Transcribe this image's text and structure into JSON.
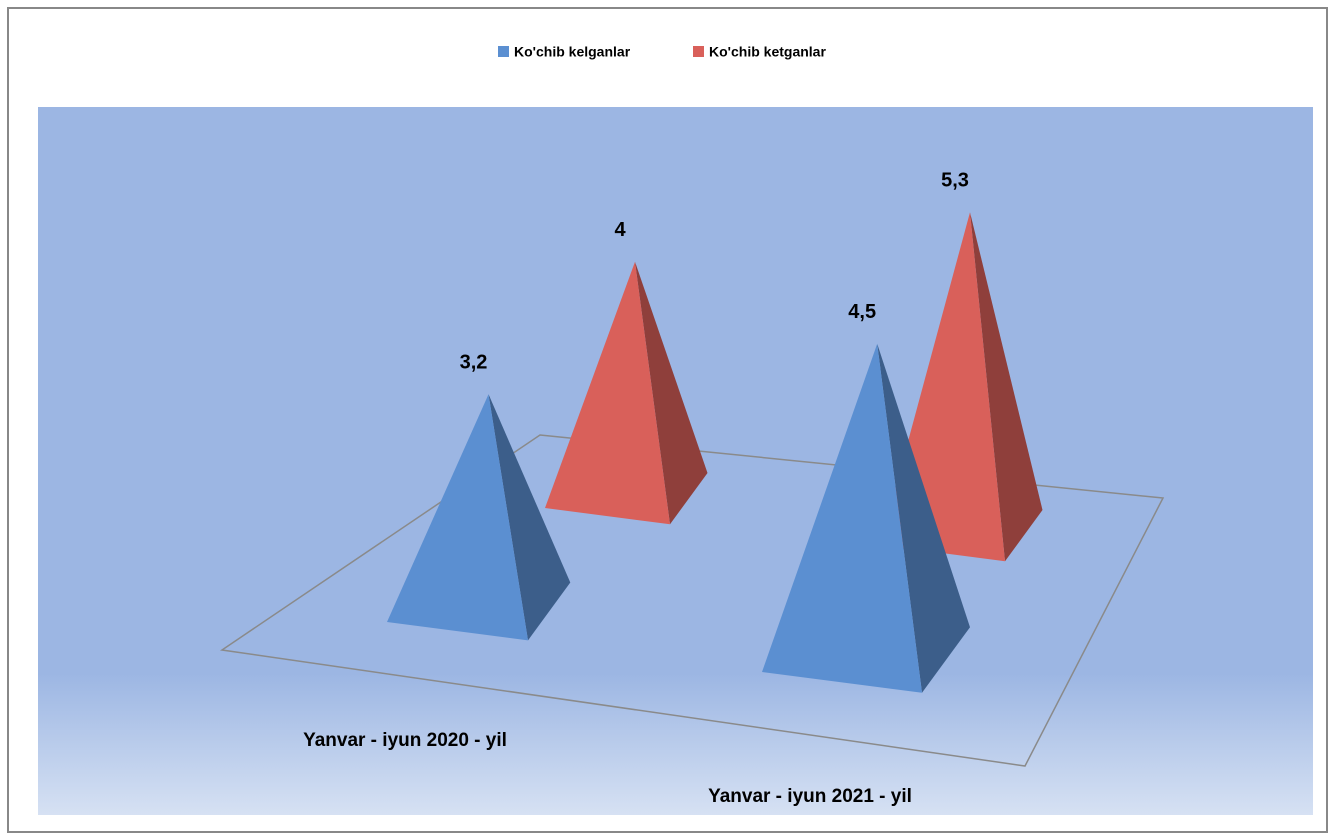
{
  "chart_data": {
    "type": "pyramid",
    "categories": [
      "Yanvar - iyun 2020 - yil",
      "Yanvar - iyun 2021 - yil"
    ],
    "series": [
      {
        "name": "Ko'chib kelganlar",
        "color": "#5b8fd1",
        "values": [
          3.2,
          4.5
        ],
        "value_labels": [
          "3,2",
          "4,5"
        ]
      },
      {
        "name": "Ko'chib ketganlar",
        "color": "#d9605a",
        "values": [
          4,
          5.3
        ],
        "value_labels": [
          "4",
          "5,3"
        ]
      }
    ],
    "legend": "top"
  }
}
